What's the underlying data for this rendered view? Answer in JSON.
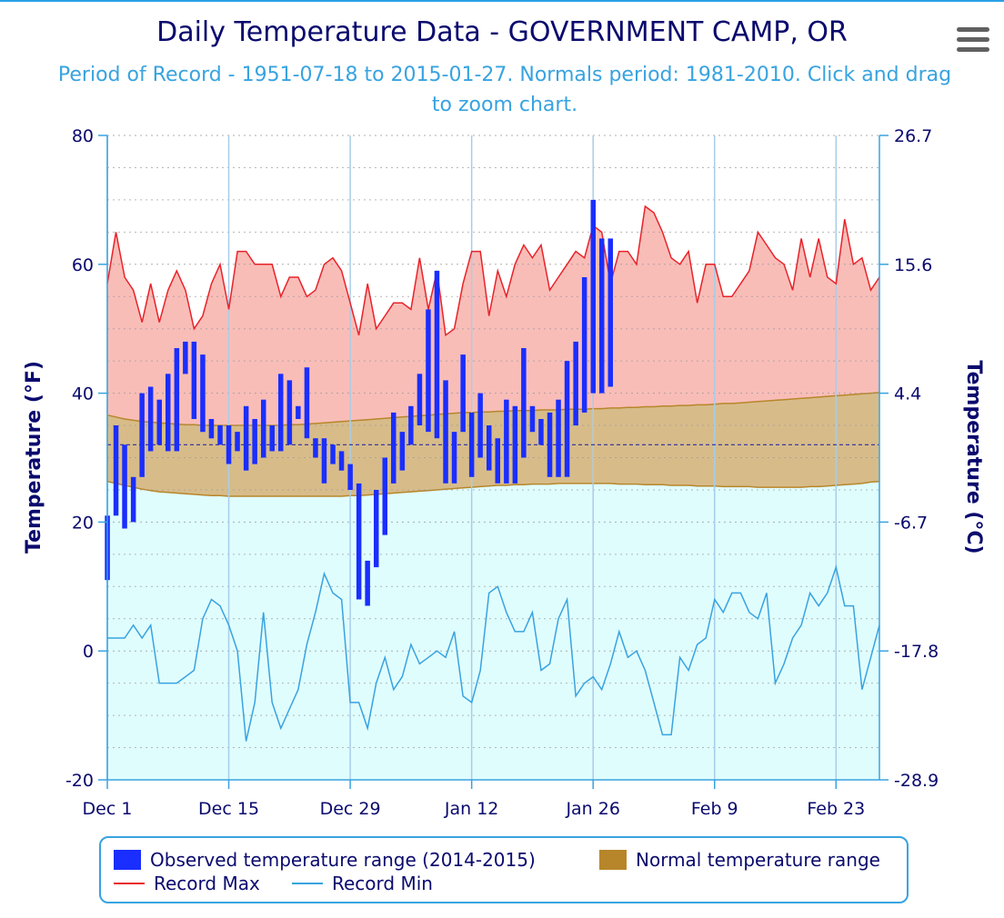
{
  "header": {
    "title": "Daily Temperature Data - GOVERNMENT CAMP, OR",
    "subtitle": "Period of Record - 1951-07-18 to 2015-01-27. Normals period: 1981-2010. Click and drag to zoom chart."
  },
  "menu": {
    "icon": "hamburger-menu-icon"
  },
  "colors": {
    "observed": "#1a2eff",
    "normal_band": "#b8862a",
    "normal_fill": "#d7bc8a",
    "record_max": "#e8232a",
    "record_max_fill": "#f9bdb8",
    "record_min": "#38a3e0",
    "record_min_fill": "#e0fdfe",
    "freezing_line": "#2a2a9e"
  },
  "legend": {
    "observed": "Observed temperature range (2014-2015)",
    "normal": "Normal temperature range",
    "record_max": "Record Max",
    "record_min": "Record Min"
  },
  "chart_data": {
    "type": "bar",
    "title": "Daily Temperature Data - GOVERNMENT CAMP, OR",
    "subtitle": "Period of Record - 1951-07-18 to 2015-01-27. Normals period: 1981-2010. Click and drag to zoom chart.",
    "x_start": "Dec 1",
    "x_tick_labels": [
      "Dec 1",
      "Dec 15",
      "Dec 29",
      "Jan 12",
      "Jan 26",
      "Feb 9",
      "Feb 23"
    ],
    "x_tick_days": [
      0,
      14,
      28,
      42,
      56,
      70,
      84
    ],
    "x_range_days": [
      0,
      89
    ],
    "ylabel_left": "Temperature (°F)",
    "ylabel_right": "Temperature (°C)",
    "ylim": [
      -20,
      80
    ],
    "yticks_left": [
      "-20",
      "0",
      "20",
      "40",
      "60",
      "80"
    ],
    "yticks_right": [
      "-28.9",
      "-17.8",
      "-6.7",
      "4.4",
      "15.6",
      "26.7"
    ],
    "freezing_f": 32,
    "grid": true,
    "legend_position": "bottom",
    "series": [
      {
        "name": "Observed temperature range (2014-2015)",
        "kind": "columnrange",
        "low": [
          11,
          21,
          19,
          20,
          27,
          31,
          32,
          31,
          31,
          43,
          36,
          34,
          33,
          32,
          29,
          31,
          28,
          29,
          30,
          31,
          31,
          32,
          36,
          33,
          30,
          26,
          29,
          28,
          25,
          8,
          7,
          13,
          18,
          26,
          28,
          32,
          35,
          34,
          33,
          26,
          26,
          34,
          27,
          30,
          28,
          26,
          26,
          26,
          30,
          34,
          32,
          27,
          27,
          27,
          35,
          37,
          40,
          40,
          41
        ],
        "high": [
          21,
          35,
          32,
          27,
          40,
          41,
          39,
          43,
          47,
          48,
          48,
          46,
          36,
          35,
          35,
          34,
          38,
          36,
          39,
          35,
          43,
          42,
          38,
          44,
          33,
          33,
          32,
          31,
          29,
          26,
          14,
          25,
          30,
          37,
          34,
          38,
          43,
          53,
          59,
          42,
          34,
          46,
          37,
          40,
          35,
          33,
          39,
          38,
          47,
          38,
          36,
          37,
          39,
          45,
          48,
          58,
          70,
          64,
          64
        ]
      },
      {
        "name": "Normal temperature range",
        "kind": "arearange",
        "low": [
          26.3,
          26,
          25.7,
          25.4,
          25.1,
          24.9,
          24.7,
          24.6,
          24.5,
          24.4,
          24.3,
          24.2,
          24.1,
          24.1,
          24,
          24,
          24,
          24,
          24,
          24,
          24,
          24,
          24,
          24,
          24,
          24,
          24,
          24,
          24.1,
          24.1,
          24.2,
          24.3,
          24.4,
          24.5,
          24.6,
          24.7,
          24.8,
          24.9,
          25,
          25.1,
          25.2,
          25.3,
          25.4,
          25.5,
          25.6,
          25.7,
          25.7,
          25.8,
          25.8,
          25.9,
          25.9,
          25.9,
          26,
          26,
          26,
          26,
          26,
          26,
          26,
          25.9,
          25.9,
          25.9,
          25.8,
          25.8,
          25.8,
          25.7,
          25.7,
          25.7,
          25.6,
          25.6,
          25.6,
          25.5,
          25.5,
          25.5,
          25.5,
          25.4,
          25.4,
          25.4,
          25.4,
          25.4,
          25.4,
          25.5,
          25.5,
          25.6,
          25.7,
          25.8,
          25.9,
          26,
          26.2,
          26.3
        ],
        "high": [
          36.6,
          36.3,
          36,
          35.8,
          35.6,
          35.5,
          35.4,
          35.3,
          35.2,
          35.1,
          35.1,
          35,
          35,
          35,
          35,
          35,
          35,
          35,
          35,
          35,
          35,
          35.1,
          35.1,
          35.2,
          35.3,
          35.4,
          35.5,
          35.6,
          35.7,
          35.8,
          35.9,
          36,
          36.1,
          36.2,
          36.3,
          36.4,
          36.5,
          36.6,
          36.7,
          36.8,
          36.9,
          37,
          37,
          37.1,
          37.1,
          37.2,
          37.2,
          37.3,
          37.3,
          37.3,
          37.4,
          37.4,
          37.4,
          37.5,
          37.5,
          37.5,
          37.6,
          37.6,
          37.7,
          37.7,
          37.8,
          37.8,
          37.9,
          37.9,
          38,
          38,
          38.1,
          38.1,
          38.2,
          38.2,
          38.3,
          38.4,
          38.4,
          38.5,
          38.6,
          38.7,
          38.8,
          38.9,
          39,
          39.1,
          39.2,
          39.3,
          39.4,
          39.5,
          39.6,
          39.7,
          39.8,
          39.9,
          40,
          40.1
        ]
      },
      {
        "name": "Record Max",
        "kind": "line",
        "values": [
          57,
          65,
          58,
          56,
          51,
          57,
          51,
          56,
          59,
          56,
          50,
          52,
          57,
          60,
          53,
          62,
          62,
          60,
          60,
          60,
          55,
          58,
          58,
          55,
          56,
          60,
          61,
          59,
          54,
          49,
          57,
          50,
          52,
          54,
          54,
          53,
          61,
          53,
          59,
          49,
          50,
          57,
          62,
          62,
          52,
          59,
          55,
          60,
          63,
          61,
          63,
          56,
          58,
          60,
          62,
          61,
          66,
          65,
          57,
          62,
          62,
          60,
          69,
          68,
          65,
          61,
          60,
          62,
          54,
          60,
          60,
          55,
          55,
          57,
          59,
          65,
          63,
          61,
          60,
          56,
          64,
          58,
          64,
          58,
          57,
          67,
          60,
          61,
          56,
          58
        ]
      },
      {
        "name": "Record Min",
        "kind": "line",
        "values": [
          2,
          2,
          2,
          4,
          2,
          4,
          -5,
          -5,
          -5,
          -4,
          -3,
          5,
          8,
          7,
          4,
          0,
          -14,
          -8,
          6,
          -8,
          -12,
          -9,
          -6,
          1,
          6,
          12,
          9,
          8,
          -8,
          -8,
          -12,
          -5,
          -1,
          -6,
          -4,
          1,
          -2,
          -1,
          0,
          -1,
          3,
          -7,
          -8,
          -3,
          9,
          10,
          6,
          3,
          3,
          6,
          -3,
          -2,
          5,
          8,
          -7,
          -5,
          -4,
          -6,
          -2,
          3,
          -1,
          0,
          -3,
          -8,
          -13,
          -13,
          -1,
          -3,
          1,
          2,
          8,
          6,
          9,
          9,
          6,
          5,
          9,
          -5,
          -2,
          2,
          4,
          9,
          7,
          9,
          13,
          7,
          7,
          -6,
          -1,
          4
        ]
      }
    ]
  }
}
